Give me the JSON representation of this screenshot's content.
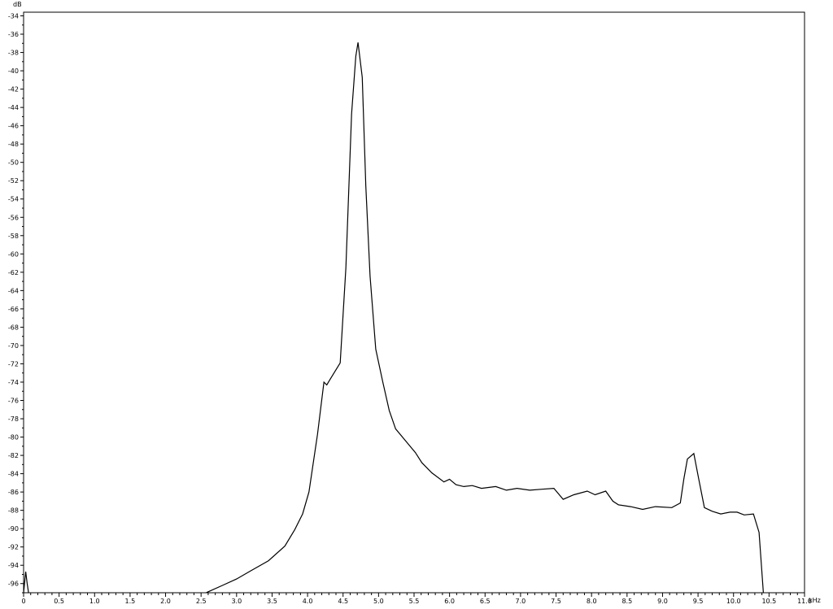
{
  "chart_data": {
    "type": "line",
    "title": "",
    "ylabel": "dB",
    "xlabel": "kHz",
    "xlim": [
      0,
      11.0
    ],
    "ylim": [
      -97,
      -33.6
    ],
    "grid": false,
    "x_ticks": [
      "0",
      "0.5",
      "1.0",
      "1.5",
      "2.0",
      "2.5",
      "3.0",
      "3.5",
      "4.0",
      "4.5",
      "5.0",
      "5.5",
      "6.0",
      "6.5",
      "7.0",
      "7.5",
      "8.0",
      "8.5",
      "9.0",
      "9.5",
      "10.0",
      "10.5",
      "11.0"
    ],
    "y_ticks": [
      -34,
      -36,
      -38,
      -40,
      -42,
      -44,
      -46,
      -48,
      -50,
      -52,
      -54,
      -56,
      -58,
      -60,
      -62,
      -64,
      -66,
      -68,
      -70,
      -72,
      -74,
      -76,
      -78,
      -80,
      -82,
      -84,
      -86,
      -88,
      -90,
      -92,
      -94,
      -96
    ],
    "line_color": "#000000",
    "series": [
      {
        "segment": "low",
        "x": [
          0.0,
          0.03,
          0.05,
          0.07
        ],
        "y": [
          -97,
          -94.7,
          -96,
          -97
        ]
      },
      {
        "segment": "main",
        "x": [
          2.57,
          2.8,
          3.0,
          3.2,
          3.45,
          3.68,
          3.82,
          3.93,
          4.02,
          4.14,
          4.23,
          4.27,
          4.31,
          4.46,
          4.54,
          4.62,
          4.68,
          4.71,
          4.77,
          4.82,
          4.88,
          4.96,
          5.06,
          5.15,
          5.24,
          5.4,
          5.52,
          5.61,
          5.75,
          5.92,
          6.0,
          6.09,
          6.2,
          6.32,
          6.45,
          6.55,
          6.65,
          6.8,
          6.95,
          7.13,
          7.3,
          7.47,
          7.6,
          7.75,
          7.94,
          8.05,
          8.2,
          8.3,
          8.38,
          8.55,
          8.72,
          8.9,
          9.13,
          9.25,
          9.3,
          9.35,
          9.44,
          9.51,
          9.59,
          9.7,
          9.82,
          9.95,
          10.05,
          10.15,
          10.28,
          10.36,
          10.42
        ],
        "y": [
          -97,
          -96.2,
          -95.5,
          -94.6,
          -93.5,
          -91.9,
          -90.1,
          -88.4,
          -86,
          -79.7,
          -74,
          -74.3,
          -73.8,
          -71.9,
          -61.5,
          -44.7,
          -38.4,
          -36.9,
          -40.7,
          -52.6,
          -62.4,
          -70.4,
          -74,
          -77.1,
          -79.1,
          -80.6,
          -81.7,
          -82.8,
          -83.9,
          -84.9,
          -84.6,
          -85.2,
          -85.4,
          -85.3,
          -85.6,
          -85.5,
          -85.4,
          -85.8,
          -85.6,
          -85.8,
          -85.7,
          -85.6,
          -86.8,
          -86.3,
          -85.9,
          -86.3,
          -85.9,
          -87.0,
          -87.4,
          -87.6,
          -87.9,
          -87.6,
          -87.7,
          -87.2,
          -84.6,
          -82.4,
          -81.8,
          -84.6,
          -87.7,
          -88.1,
          -88.4,
          -88.2,
          -88.2,
          -88.5,
          -88.4,
          -90.4,
          -97
        ]
      }
    ]
  }
}
